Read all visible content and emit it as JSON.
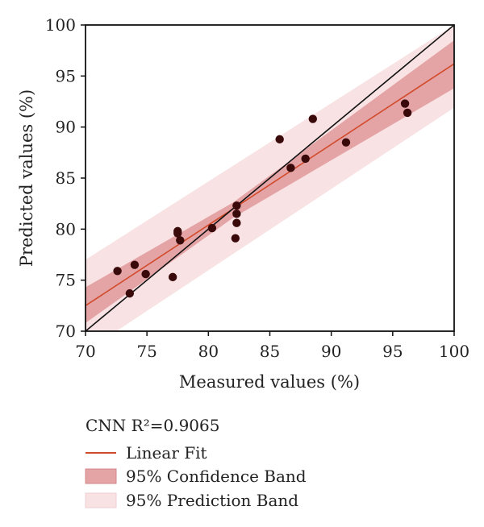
{
  "chart_data": {
    "type": "scatter",
    "xlabel": "Measured values (%)",
    "ylabel": "Predicted values (%)",
    "xlim": [
      70,
      100
    ],
    "ylim": [
      70,
      100
    ],
    "xticks": [
      70,
      75,
      80,
      85,
      90,
      95,
      100
    ],
    "yticks": [
      70,
      75,
      80,
      85,
      90,
      95,
      100
    ],
    "grid": false,
    "legend_position": "below",
    "legend": {
      "title": "CNN R²=0.9065",
      "entries": [
        {
          "label": "Linear Fit",
          "color": "#d24a2a"
        },
        {
          "label": "95% Confidence Band",
          "color": "#e4a4a6"
        },
        {
          "label": "95% Prediction Band",
          "color": "#f8e2e3"
        }
      ]
    },
    "identity_line": {
      "x": [
        70,
        100
      ],
      "y": [
        70,
        100
      ],
      "color": "#111111"
    },
    "linear_fit": {
      "x": [
        70,
        100
      ],
      "y": [
        72.5,
        96.2
      ]
    },
    "confidence_band": {
      "x": [
        70,
        82,
        100
      ],
      "upper": [
        74.3,
        82.6,
        98.5
      ],
      "lower": [
        70.8,
        81.1,
        93.8
      ]
    },
    "prediction_band": {
      "x": [
        70,
        100
      ],
      "upper": [
        77.0,
        100.0
      ],
      "lower": [
        68.0,
        91.9
      ]
    },
    "series": [
      {
        "points": [
          [
            72.6,
            75.9
          ],
          [
            73.6,
            73.7
          ],
          [
            74.0,
            76.5
          ],
          [
            74.9,
            75.6
          ],
          [
            77.1,
            75.3
          ],
          [
            77.5,
            79.6
          ],
          [
            77.5,
            79.8
          ],
          [
            77.7,
            78.9
          ],
          [
            80.3,
            80.1
          ],
          [
            82.2,
            79.1
          ],
          [
            82.3,
            80.6
          ],
          [
            82.3,
            81.5
          ],
          [
            82.3,
            82.3
          ],
          [
            85.8,
            88.8
          ],
          [
            86.7,
            86.0
          ],
          [
            87.9,
            86.9
          ],
          [
            88.5,
            90.8
          ],
          [
            91.2,
            88.5
          ],
          [
            96.0,
            92.3
          ],
          [
            96.2,
            91.4
          ]
        ]
      }
    ],
    "colors": {
      "point": "#3a0a0a",
      "fit": "#d24a2a",
      "confidence": "#e4a4a6",
      "prediction": "#f8e2e3",
      "axis": "#111111"
    }
  }
}
